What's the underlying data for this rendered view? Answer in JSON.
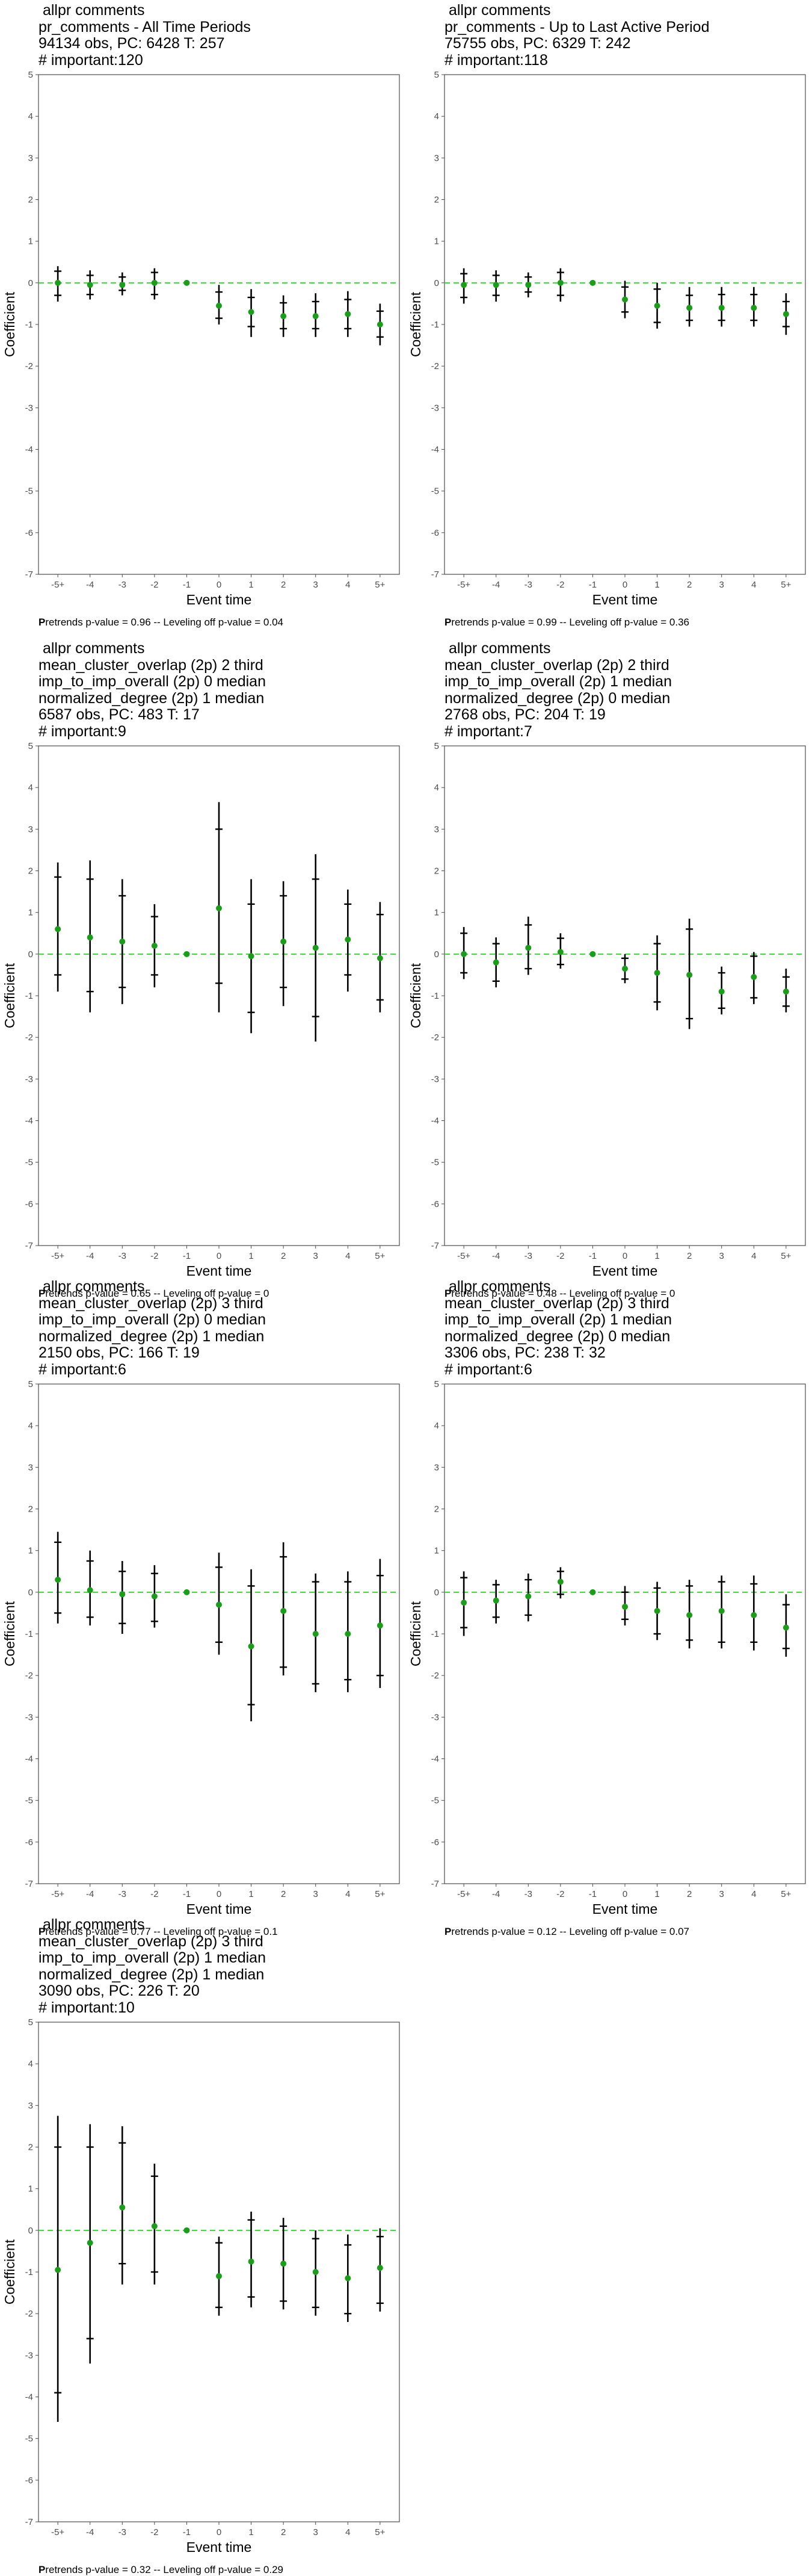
{
  "chart_data": [
    {
      "type": "scatter",
      "title_lines": [
        " allpr comments",
        "pr_comments - All Time Periods",
        "94134 obs, PC: 6428 T: 257",
        "# important:120"
      ],
      "xlabel": "Event time",
      "ylabel": "Coefficient",
      "categories": [
        "-5+",
        "-4",
        "-3",
        "-2",
        "-1",
        "0",
        "1",
        "2",
        "3",
        "4",
        "5+"
      ],
      "ylim": [
        -7,
        5
      ],
      "yticks": [
        -7,
        -6,
        -5,
        -4,
        -3,
        -2,
        -1,
        0,
        1,
        2,
        3,
        4,
        5
      ],
      "reference_line": 0,
      "estimates": [
        0.0,
        -0.05,
        -0.05,
        -0.0,
        0.0,
        -0.55,
        -0.7,
        -0.8,
        -0.8,
        -0.75,
        -1.0
      ],
      "ci_outer": [
        [
          -0.45,
          0.4
        ],
        [
          -0.4,
          0.3
        ],
        [
          -0.3,
          0.25
        ],
        [
          -0.4,
          0.35
        ],
        [
          0.0,
          0.0
        ],
        [
          -1.0,
          -0.05
        ],
        [
          -1.3,
          -0.15
        ],
        [
          -1.3,
          -0.3
        ],
        [
          -1.3,
          -0.25
        ],
        [
          -1.3,
          -0.2
        ],
        [
          -1.5,
          -0.5
        ]
      ],
      "ci_inner": [
        [
          -0.3,
          0.28
        ],
        [
          -0.28,
          0.18
        ],
        [
          -0.18,
          0.14
        ],
        [
          -0.28,
          0.25
        ],
        [
          0.0,
          0.0
        ],
        [
          -0.85,
          -0.22
        ],
        [
          -1.05,
          -0.35
        ],
        [
          -1.1,
          -0.48
        ],
        [
          -1.1,
          -0.45
        ],
        [
          -1.1,
          -0.4
        ],
        [
          -1.3,
          -0.68
        ]
      ],
      "footnote": {
        "label_bold": "P",
        "label_rest": "retrends p-value = 0.96 -- Leveling off p-value = 0.04"
      },
      "colors": {
        "point": "#1a9e1a",
        "reference_line": "#3cd43c",
        "interval": "#000000"
      }
    },
    {
      "type": "scatter",
      "title_lines": [
        " allpr comments",
        "pr_comments - Up to Last Active Period",
        "75755 obs, PC: 6329 T: 242",
        "# important:118"
      ],
      "xlabel": "Event time",
      "ylabel": "Coefficient",
      "categories": [
        "-5+",
        "-4",
        "-3",
        "-2",
        "-1",
        "0",
        "1",
        "2",
        "3",
        "4",
        "5+"
      ],
      "ylim": [
        -7,
        5
      ],
      "yticks": [
        -7,
        -6,
        -5,
        -4,
        -3,
        -2,
        -1,
        0,
        1,
        2,
        3,
        4,
        5
      ],
      "reference_line": 0,
      "estimates": [
        -0.05,
        -0.05,
        -0.05,
        -0.0,
        0.0,
        -0.4,
        -0.55,
        -0.6,
        -0.6,
        -0.6,
        -0.75
      ],
      "ci_outer": [
        [
          -0.5,
          0.35
        ],
        [
          -0.45,
          0.3
        ],
        [
          -0.35,
          0.25
        ],
        [
          -0.45,
          0.35
        ],
        [
          0.0,
          0.0
        ],
        [
          -0.85,
          0.05
        ],
        [
          -1.1,
          -0.0
        ],
        [
          -1.05,
          -0.1
        ],
        [
          -1.05,
          -0.1
        ],
        [
          -1.05,
          -0.1
        ],
        [
          -1.25,
          -0.25
        ]
      ],
      "ci_inner": [
        [
          -0.35,
          0.22
        ],
        [
          -0.3,
          0.18
        ],
        [
          -0.22,
          0.14
        ],
        [
          -0.3,
          0.25
        ],
        [
          0.0,
          0.0
        ],
        [
          -0.7,
          -0.1
        ],
        [
          -0.95,
          -0.15
        ],
        [
          -0.9,
          -0.3
        ],
        [
          -0.9,
          -0.28
        ],
        [
          -0.9,
          -0.28
        ],
        [
          -1.05,
          -0.45
        ]
      ],
      "footnote": {
        "label_bold": "P",
        "label_rest": "retrends p-value = 0.99 -- Leveling off p-value = 0.36"
      },
      "colors": {
        "point": "#1a9e1a",
        "reference_line": "#3cd43c",
        "interval": "#000000"
      }
    },
    {
      "type": "scatter",
      "title_lines": [
        " allpr comments",
        "mean_cluster_overlap (2p) 2 third",
        "imp_to_imp_overall (2p) 0 median",
        "normalized_degree (2p) 1 median",
        "6587 obs, PC: 483 T: 17",
        "# important:9"
      ],
      "xlabel": "Event time",
      "ylabel": "Coefficient",
      "categories": [
        "-5+",
        "-4",
        "-3",
        "-2",
        "-1",
        "0",
        "1",
        "2",
        "3",
        "4",
        "5+"
      ],
      "ylim": [
        -7,
        5
      ],
      "yticks": [
        -7,
        -6,
        -5,
        -4,
        -3,
        -2,
        -1,
        0,
        1,
        2,
        3,
        4,
        5
      ],
      "reference_line": 0,
      "estimates": [
        0.6,
        0.4,
        0.3,
        0.2,
        0.0,
        1.1,
        -0.05,
        0.3,
        0.15,
        0.35,
        -0.1
      ],
      "ci_outer": [
        [
          -0.9,
          2.2
        ],
        [
          -1.4,
          2.25
        ],
        [
          -1.2,
          1.8
        ],
        [
          -0.8,
          1.2
        ],
        [
          0.0,
          0.0
        ],
        [
          -1.4,
          3.65
        ],
        [
          -1.9,
          1.8
        ],
        [
          -1.25,
          1.75
        ],
        [
          -2.1,
          2.4
        ],
        [
          -0.9,
          1.55
        ],
        [
          -1.4,
          1.25
        ]
      ],
      "ci_inner": [
        [
          -0.5,
          1.85
        ],
        [
          -0.9,
          1.8
        ],
        [
          -0.8,
          1.4
        ],
        [
          -0.5,
          0.9
        ],
        [
          0.0,
          0.0
        ],
        [
          -0.7,
          3.0
        ],
        [
          -1.4,
          1.2
        ],
        [
          -0.8,
          1.4
        ],
        [
          -1.5,
          1.8
        ],
        [
          -0.5,
          1.2
        ],
        [
          -1.1,
          0.95
        ]
      ],
      "footnote": {
        "label_bold": "P",
        "label_rest": "retrends p-value = 0.65 -- Leveling off p-value = 0"
      },
      "colors": {
        "point": "#1a9e1a",
        "reference_line": "#3cd43c",
        "interval": "#000000"
      }
    },
    {
      "type": "scatter",
      "title_lines": [
        " allpr comments",
        "mean_cluster_overlap (2p) 2 third",
        "imp_to_imp_overall (2p) 1 median",
        "normalized_degree (2p) 0 median",
        "2768 obs, PC: 204 T: 19",
        "# important:7"
      ],
      "xlabel": "Event time",
      "ylabel": "Coefficient",
      "categories": [
        "-5+",
        "-4",
        "-3",
        "-2",
        "-1",
        "0",
        "1",
        "2",
        "3",
        "4",
        "5+"
      ],
      "ylim": [
        -7,
        5
      ],
      "yticks": [
        -7,
        -6,
        -5,
        -4,
        -3,
        -2,
        -1,
        0,
        1,
        2,
        3,
        4,
        5
      ],
      "reference_line": 0,
      "estimates": [
        0.0,
        -0.2,
        0.15,
        0.05,
        0.0,
        -0.35,
        -0.45,
        -0.5,
        -0.9,
        -0.55,
        -0.9
      ],
      "ci_outer": [
        [
          -0.6,
          0.65
        ],
        [
          -0.8,
          0.4
        ],
        [
          -0.5,
          0.9
        ],
        [
          -0.35,
          0.5
        ],
        [
          0.0,
          0.0
        ],
        [
          -0.7,
          -0.0
        ],
        [
          -1.35,
          0.45
        ],
        [
          -1.8,
          0.85
        ],
        [
          -1.45,
          -0.3
        ],
        [
          -1.2,
          0.05
        ],
        [
          -1.4,
          -0.35
        ]
      ],
      "ci_inner": [
        [
          -0.45,
          0.5
        ],
        [
          -0.65,
          0.25
        ],
        [
          -0.35,
          0.7
        ],
        [
          -0.25,
          0.38
        ],
        [
          0.0,
          0.0
        ],
        [
          -0.6,
          -0.1
        ],
        [
          -1.15,
          0.25
        ],
        [
          -1.55,
          0.6
        ],
        [
          -1.3,
          -0.45
        ],
        [
          -1.05,
          -0.05
        ],
        [
          -1.25,
          -0.55
        ]
      ],
      "footnote": {
        "label_bold": "P",
        "label_rest": "retrends p-value = 0.48 -- Leveling off p-value = 0"
      },
      "colors": {
        "point": "#1a9e1a",
        "reference_line": "#3cd43c",
        "interval": "#000000"
      }
    },
    {
      "type": "scatter",
      "title_lines": [
        " allpr comments",
        "mean_cluster_overlap (2p) 3 third",
        "imp_to_imp_overall (2p) 0 median",
        "normalized_degree (2p) 1 median",
        "2150 obs, PC: 166 T: 19",
        "# important:6"
      ],
      "xlabel": "Event time",
      "ylabel": "Coefficient",
      "categories": [
        "-5+",
        "-4",
        "-3",
        "-2",
        "-1",
        "0",
        "1",
        "2",
        "3",
        "4",
        "5+"
      ],
      "ylim": [
        -7,
        5
      ],
      "yticks": [
        -7,
        -6,
        -5,
        -4,
        -3,
        -2,
        -1,
        0,
        1,
        2,
        3,
        4,
        5
      ],
      "reference_line": 0,
      "estimates": [
        0.3,
        0.05,
        -0.05,
        -0.1,
        0.0,
        -0.3,
        -1.3,
        -0.45,
        -1.0,
        -1.0,
        -0.8
      ],
      "ci_outer": [
        [
          -0.75,
          1.45
        ],
        [
          -0.8,
          1.0
        ],
        [
          -1.0,
          0.75
        ],
        [
          -0.85,
          0.65
        ],
        [
          0.0,
          0.0
        ],
        [
          -1.5,
          0.95
        ],
        [
          -3.1,
          0.55
        ],
        [
          -2.0,
          1.2
        ],
        [
          -2.4,
          0.45
        ],
        [
          -2.4,
          0.5
        ],
        [
          -2.3,
          0.8
        ]
      ],
      "ci_inner": [
        [
          -0.5,
          1.2
        ],
        [
          -0.6,
          0.75
        ],
        [
          -0.75,
          0.5
        ],
        [
          -0.7,
          0.45
        ],
        [
          0.0,
          0.0
        ],
        [
          -1.2,
          0.6
        ],
        [
          -2.7,
          0.15
        ],
        [
          -1.8,
          0.85
        ],
        [
          -2.2,
          0.25
        ],
        [
          -2.1,
          0.25
        ],
        [
          -2.0,
          0.4
        ]
      ],
      "footnote": {
        "label_bold": "P",
        "label_rest": "retrends p-value = 0.77 -- Leveling off p-value = 0.1"
      },
      "colors": {
        "point": "#1a9e1a",
        "reference_line": "#3cd43c",
        "interval": "#000000"
      }
    },
    {
      "type": "scatter",
      "title_lines": [
        " allpr comments",
        "mean_cluster_overlap (2p) 3 third",
        "imp_to_imp_overall (2p) 1 median",
        "normalized_degree (2p) 0 median",
        "3306 obs, PC: 238 T: 32",
        "# important:6"
      ],
      "xlabel": "Event time",
      "ylabel": "Coefficient",
      "categories": [
        "-5+",
        "-4",
        "-3",
        "-2",
        "-1",
        "0",
        "1",
        "2",
        "3",
        "4",
        "5+"
      ],
      "ylim": [
        -7,
        5
      ],
      "yticks": [
        -7,
        -6,
        -5,
        -4,
        -3,
        -2,
        -1,
        0,
        1,
        2,
        3,
        4,
        5
      ],
      "reference_line": 0,
      "estimates": [
        -0.25,
        -0.2,
        -0.1,
        0.25,
        0.0,
        -0.35,
        -0.45,
        -0.55,
        -0.45,
        -0.55,
        -0.85
      ],
      "ci_outer": [
        [
          -1.05,
          0.5
        ],
        [
          -0.75,
          0.3
        ],
        [
          -0.7,
          0.45
        ],
        [
          -0.15,
          0.6
        ],
        [
          0.0,
          0.0
        ],
        [
          -0.8,
          0.15
        ],
        [
          -1.15,
          0.25
        ],
        [
          -1.35,
          0.3
        ],
        [
          -1.35,
          0.4
        ],
        [
          -1.4,
          0.4
        ],
        [
          -1.55,
          -0.05
        ]
      ],
      "ci_inner": [
        [
          -0.85,
          0.35
        ],
        [
          -0.6,
          0.18
        ],
        [
          -0.55,
          0.3
        ],
        [
          -0.05,
          0.5
        ],
        [
          0.0,
          0.0
        ],
        [
          -0.65,
          -0.0
        ],
        [
          -1.0,
          0.1
        ],
        [
          -1.15,
          0.15
        ],
        [
          -1.2,
          0.25
        ],
        [
          -1.2,
          0.2
        ],
        [
          -1.35,
          -0.3
        ]
      ],
      "footnote": {
        "label_bold": "P",
        "label_rest": "retrends p-value = 0.12 -- Leveling off p-value = 0.07"
      },
      "colors": {
        "point": "#1a9e1a",
        "reference_line": "#3cd43c",
        "interval": "#000000"
      }
    },
    {
      "type": "scatter",
      "title_lines": [
        " allpr comments",
        "mean_cluster_overlap (2p) 3 third",
        "imp_to_imp_overall (2p) 1 median",
        "normalized_degree (2p) 1 median",
        "3090 obs, PC: 226 T: 20",
        "# important:10"
      ],
      "xlabel": "Event time",
      "ylabel": "Coefficient",
      "categories": [
        "-5+",
        "-4",
        "-3",
        "-2",
        "-1",
        "0",
        "1",
        "2",
        "3",
        "4",
        "5+"
      ],
      "ylim": [
        -7,
        5
      ],
      "yticks": [
        -7,
        -6,
        -5,
        -4,
        -3,
        -2,
        -1,
        0,
        1,
        2,
        3,
        4,
        5
      ],
      "reference_line": 0,
      "estimates": [
        -0.95,
        -0.3,
        0.55,
        0.1,
        0.0,
        -1.1,
        -0.75,
        -0.8,
        -1.0,
        -1.15,
        -0.9
      ],
      "ci_outer": [
        [
          -4.6,
          2.75
        ],
        [
          -3.2,
          2.55
        ],
        [
          -1.3,
          2.5
        ],
        [
          -1.3,
          1.6
        ],
        [
          0.0,
          0.0
        ],
        [
          -2.05,
          -0.15
        ],
        [
          -1.85,
          0.45
        ],
        [
          -1.9,
          0.3
        ],
        [
          -2.05,
          0.0
        ],
        [
          -2.2,
          -0.1
        ],
        [
          -1.95,
          0.05
        ]
      ],
      "ci_inner": [
        [
          -3.9,
          2.0
        ],
        [
          -2.6,
          2.0
        ],
        [
          -0.8,
          2.1
        ],
        [
          -1.0,
          1.3
        ],
        [
          0.0,
          0.0
        ],
        [
          -1.85,
          -0.3
        ],
        [
          -1.6,
          0.25
        ],
        [
          -1.7,
          0.1
        ],
        [
          -1.85,
          -0.2
        ],
        [
          -2.0,
          -0.35
        ],
        [
          -1.75,
          -0.15
        ]
      ],
      "footnote": {
        "label_bold": "P",
        "label_rest": "retrends p-value = 0.32 -- Leveling off p-value = 0.29"
      },
      "colors": {
        "point": "#1a9e1a",
        "reference_line": "#3cd43c",
        "interval": "#000000"
      }
    }
  ]
}
